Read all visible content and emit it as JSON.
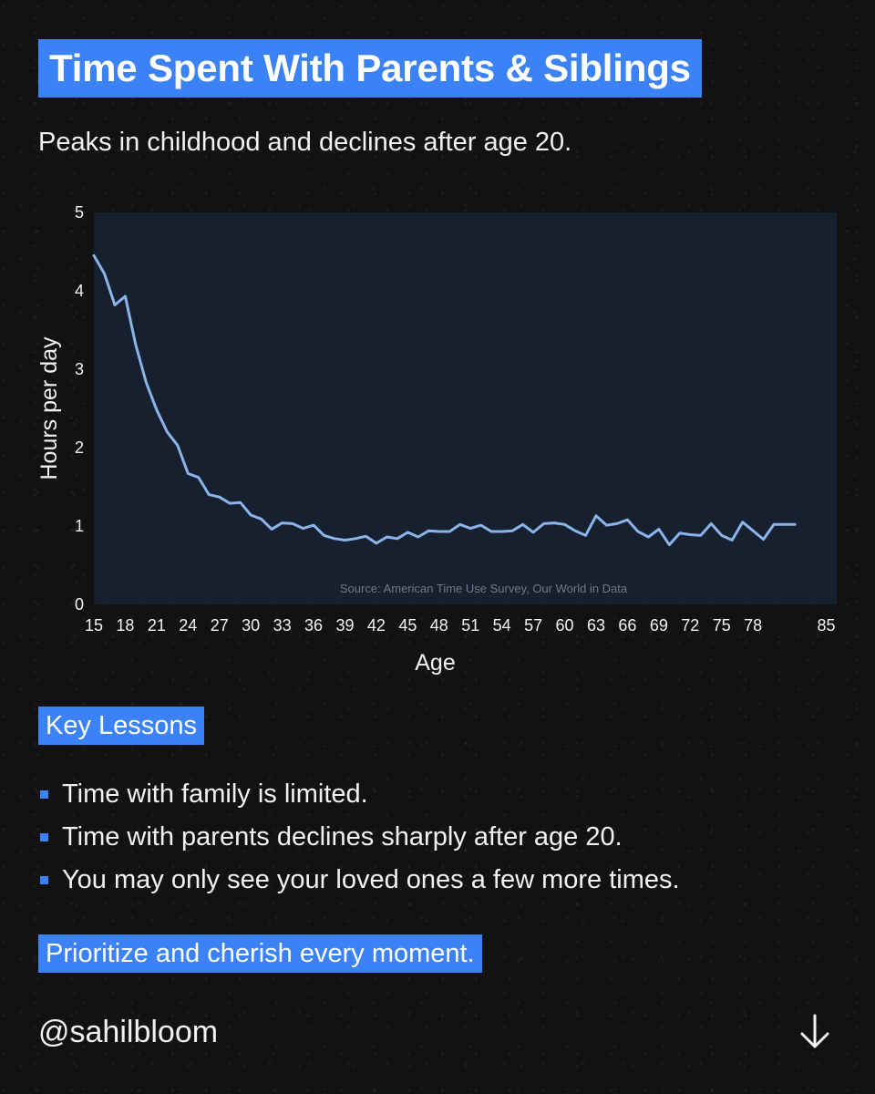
{
  "title": "Time Spent With Parents & Siblings",
  "subtitle": "Peaks in childhood and declines after age 20.",
  "chart_data": {
    "type": "line",
    "title": "",
    "xlabel": "Age",
    "ylabel": "Hours per day",
    "xlim": [
      15,
      86
    ],
    "ylim": [
      0,
      5
    ],
    "x_ticks": [
      15,
      18,
      21,
      24,
      27,
      30,
      33,
      36,
      39,
      42,
      45,
      48,
      51,
      54,
      57,
      60,
      63,
      66,
      69,
      72,
      75,
      78,
      85
    ],
    "y_ticks": [
      0,
      1,
      2,
      3,
      4,
      5
    ],
    "grid": false,
    "background": "#16202e",
    "line_color": "#8ab4ea",
    "source": "Source: American Time Use Survey, Our World in Data",
    "x": [
      15,
      16,
      17,
      18,
      19,
      20,
      21,
      22,
      23,
      24,
      25,
      26,
      27,
      28,
      29,
      30,
      31,
      32,
      33,
      34,
      35,
      36,
      37,
      38,
      39,
      40,
      41,
      42,
      43,
      44,
      45,
      46,
      47,
      48,
      49,
      50,
      51,
      52,
      53,
      54,
      55,
      56,
      57,
      58,
      59,
      60,
      61,
      62,
      63,
      64,
      65,
      66,
      67,
      68,
      69,
      70,
      71,
      72,
      73,
      74,
      75,
      76,
      77,
      78,
      79,
      80,
      81,
      82
    ],
    "series": [
      {
        "values": [
          4.45,
          4.22,
          3.82,
          3.93,
          3.31,
          2.83,
          2.48,
          2.2,
          2.03,
          1.67,
          1.62,
          1.4,
          1.37,
          1.29,
          1.3,
          1.14,
          1.09,
          0.96,
          1.04,
          1.03,
          0.97,
          1.01,
          0.88,
          0.84,
          0.82,
          0.84,
          0.87,
          0.78,
          0.86,
          0.84,
          0.92,
          0.86,
          0.94,
          0.93,
          0.93,
          1.02,
          0.97,
          1.01,
          0.93,
          0.93,
          0.94,
          1.02,
          0.92,
          1.03,
          1.04,
          1.02,
          0.94,
          0.88,
          1.13,
          1.01,
          1.03,
          1.08,
          0.93,
          0.86,
          0.96,
          0.76,
          0.91,
          0.89,
          0.88,
          1.03,
          0.88,
          0.82,
          1.05,
          0.94,
          0.83,
          1.02,
          1.02,
          1.02
        ]
      }
    ]
  },
  "key_lessons": {
    "label": "Key Lessons",
    "items": [
      "Time with family is limited.",
      "Time with parents declines sharply after age 20.",
      "You may only see your loved ones a few more times."
    ]
  },
  "cta": "Prioritize and cherish every moment.",
  "handle": "@sahilbloom",
  "icons": {
    "next": "arrow-down-icon"
  },
  "colors": {
    "accent": "#3b82f6",
    "background": "#121212"
  }
}
